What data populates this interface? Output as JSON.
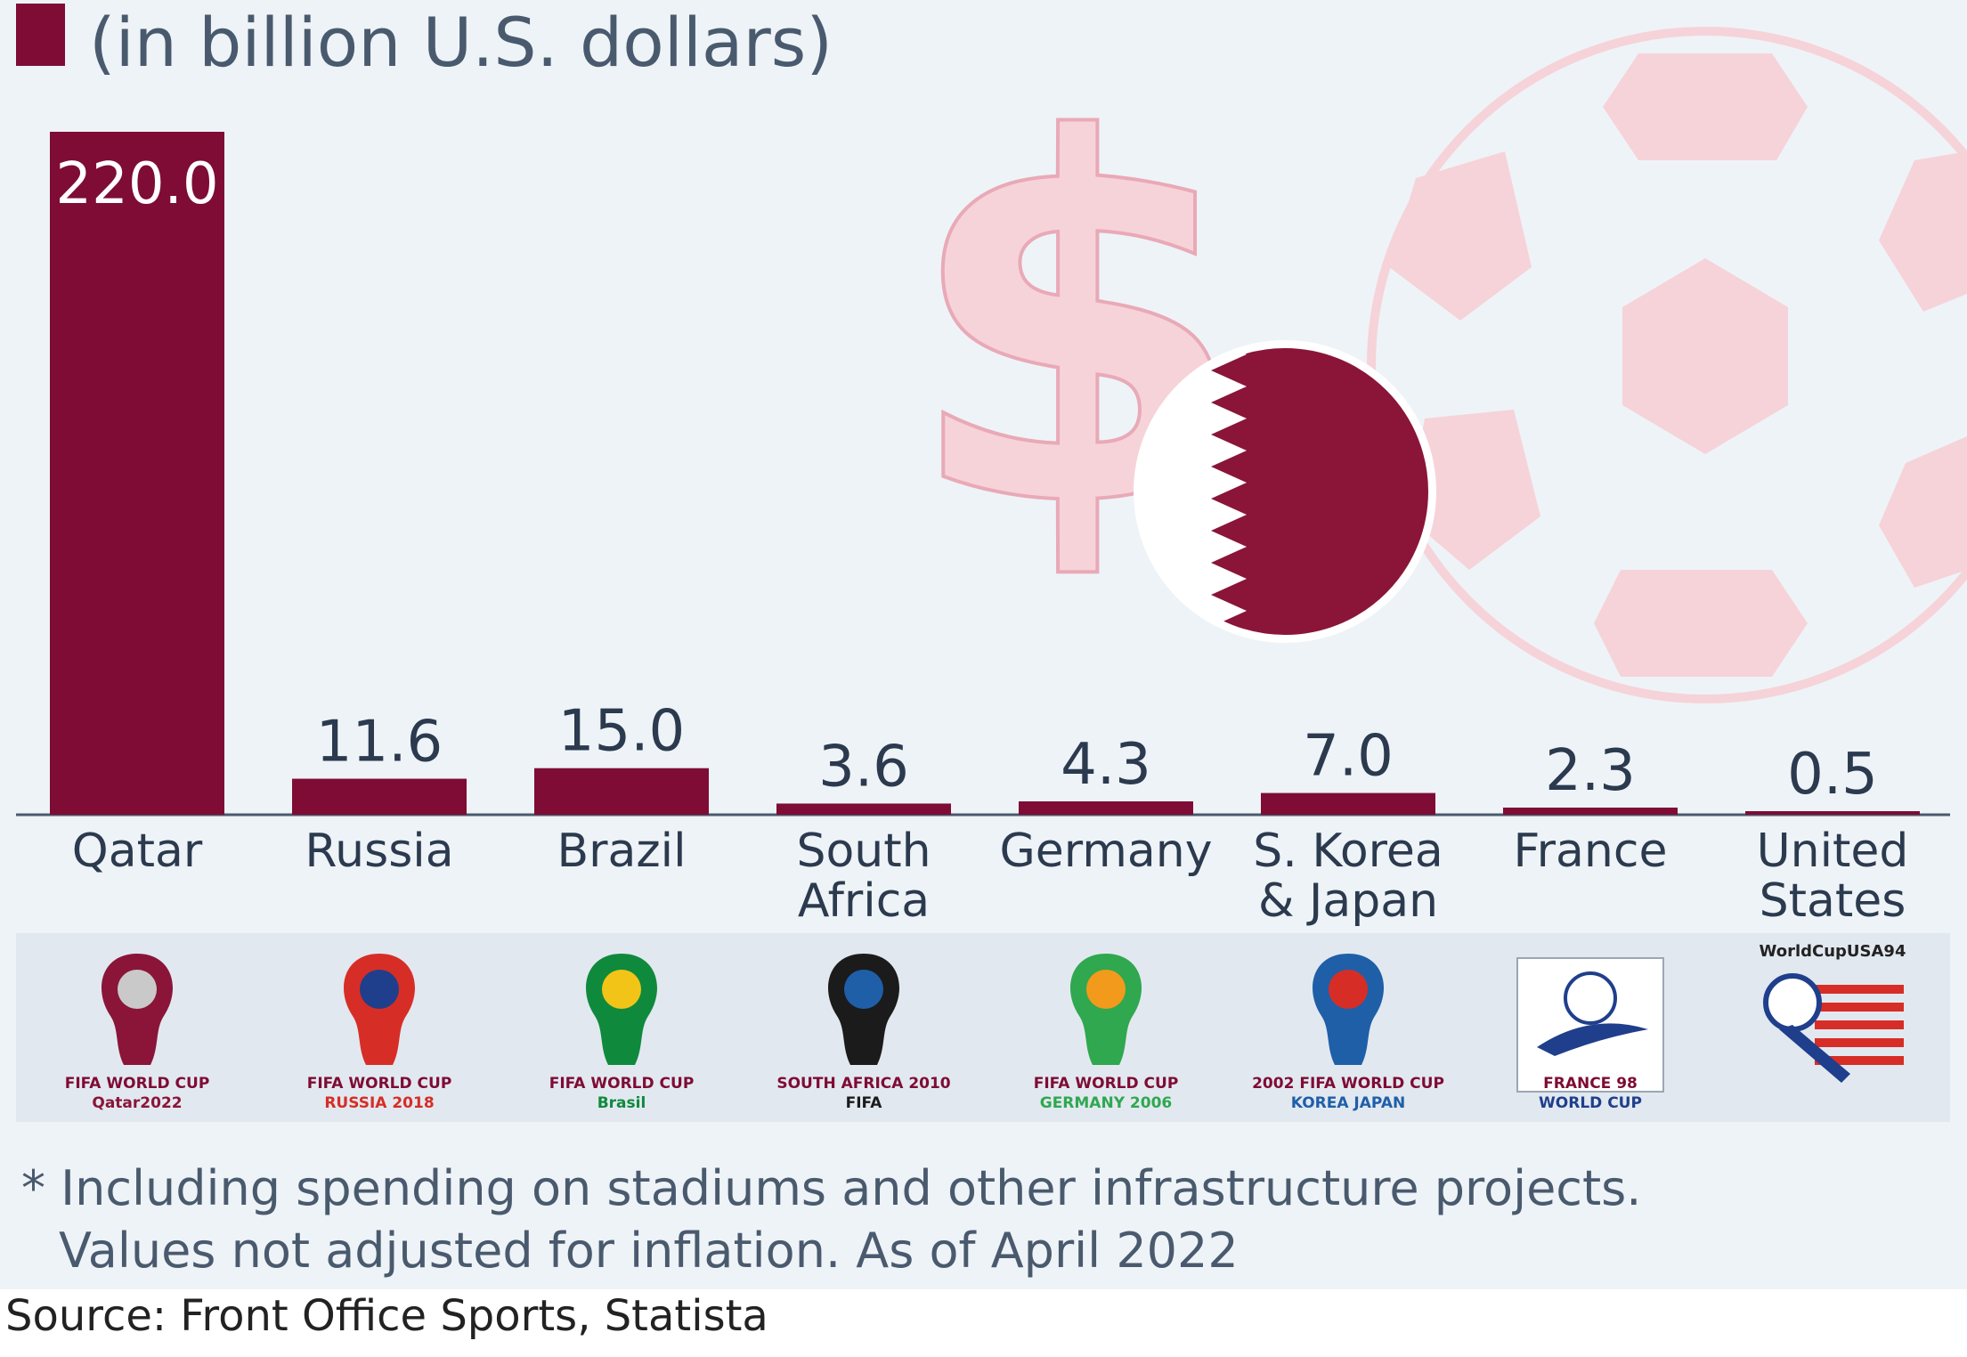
{
  "subtitle": "(in billion U.S. dollars)",
  "colors": {
    "bar": "#7e0c34",
    "axis": "#4a5a6e",
    "text": "#2b3a4e",
    "decor_pink": "#f6d3d9"
  },
  "chart_data": {
    "type": "bar",
    "categories": [
      "Qatar",
      "Russia",
      "Brazil",
      "South Africa",
      "Germany",
      "S. Korea & Japan",
      "France",
      "United States"
    ],
    "category_lines": [
      [
        "Qatar"
      ],
      [
        "Russia"
      ],
      [
        "Brazil"
      ],
      [
        "South",
        "Africa"
      ],
      [
        "Germany"
      ],
      [
        "S. Korea",
        "& Japan"
      ],
      [
        "France"
      ],
      [
        "United",
        "States"
      ]
    ],
    "values": [
      220.0,
      11.6,
      15.0,
      3.6,
      4.3,
      7.0,
      2.3,
      0.5
    ],
    "value_labels": [
      "220.0",
      "11.6",
      "15.0",
      "3.6",
      "4.3",
      "7.0",
      "2.3",
      "0.5"
    ],
    "ylabel": "(in billion U.S. dollars)",
    "ylim": [
      0,
      220
    ],
    "grid": false,
    "legend": "top-left"
  },
  "logos": [
    {
      "name": "qatar-2022-logo",
      "lines": [
        "FIFA WORLD CUP",
        "Qatar2022"
      ]
    },
    {
      "name": "russia-2018-logo",
      "lines": [
        "FIFA WORLD CUP",
        "RUSSIA 2018"
      ]
    },
    {
      "name": "brazil-2014-logo",
      "lines": [
        "FIFA WORLD CUP",
        "Brasil"
      ]
    },
    {
      "name": "south-africa-2010-logo",
      "lines": [
        "SOUTH AFRICA 2010",
        "FIFA"
      ]
    },
    {
      "name": "germany-2006-logo",
      "lines": [
        "FIFA WORLD CUP",
        "GERMANY 2006"
      ]
    },
    {
      "name": "korea-japan-2002-logo",
      "lines": [
        "2002 FIFA WORLD CUP",
        "KOREA JAPAN"
      ]
    },
    {
      "name": "france-98-logo",
      "lines": [
        "FRANCE 98",
        "WORLD CUP"
      ]
    },
    {
      "name": "usa-94-logo",
      "lines": [
        "WorldCupUSA94"
      ]
    }
  ],
  "footnote": {
    "line1": "* Including spending on stadiums and other infrastructure projects.",
    "line2": "Values not adjusted for inflation. As of April 2022"
  },
  "source": "Source: Front Office Sports, Statista"
}
